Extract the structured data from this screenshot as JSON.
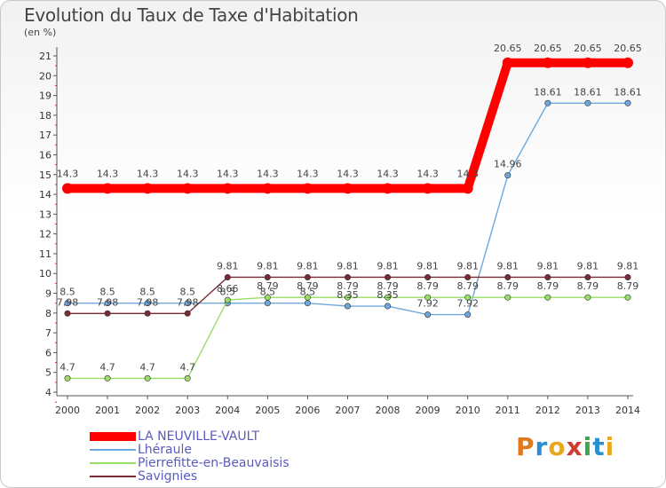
{
  "header": {
    "title": "Evolution du Taux de Taxe d'Habitation",
    "unit": "(en %)"
  },
  "logo": {
    "text": "Proxiti",
    "colors": [
      "#e07a1f",
      "#2a8fd0",
      "#e8a820",
      "#d03a2f",
      "#3aa84a",
      "#2a8fd0",
      "#e8a820"
    ]
  },
  "chart_data": {
    "type": "line",
    "x": [
      2000,
      2001,
      2002,
      2003,
      2004,
      2005,
      2006,
      2007,
      2008,
      2009,
      2010,
      2011,
      2012,
      2013,
      2014
    ],
    "ylim": [
      4,
      21
    ],
    "yticks": [
      4,
      5,
      6,
      7,
      8,
      9,
      10,
      11,
      12,
      13,
      14,
      15,
      16,
      17,
      18,
      19,
      20,
      21
    ],
    "grid": false,
    "legend_position": "bottom-left",
    "series": [
      {
        "name": "LA NEUVILLE-VAULT",
        "color": "#ff0000",
        "width": "thick",
        "values": [
          14.3,
          14.3,
          14.3,
          14.3,
          14.3,
          14.3,
          14.3,
          14.3,
          14.3,
          14.3,
          14.3,
          20.65,
          20.65,
          20.65,
          20.65
        ],
        "labels": [
          "14.3",
          "14.3",
          "14.3",
          "14.3",
          "14.3",
          "14.3",
          "14.3",
          "14.3",
          "14.3",
          "14.3",
          "14.3",
          "20.65",
          "20.65",
          "20.65",
          "20.65"
        ]
      },
      {
        "name": "Lhéraule",
        "color": "#6fa8dc",
        "width": "thin",
        "values": [
          8.5,
          8.5,
          8.5,
          8.5,
          8.5,
          8.5,
          8.5,
          8.35,
          8.35,
          7.92,
          7.92,
          14.96,
          18.61,
          18.61,
          18.61
        ],
        "labels": [
          "8.5",
          "8.5",
          "8.5",
          "8.5",
          "8.5",
          "8.5",
          "8.5",
          "8.35",
          "8.35",
          "7.92",
          "7.92",
          "14.96",
          "18.61",
          "18.61",
          "18.61"
        ]
      },
      {
        "name": "Pierrefitte-en-Beauvaisis",
        "color": "#99dd66",
        "width": "thin",
        "values": [
          4.7,
          4.7,
          4.7,
          4.7,
          8.66,
          8.79,
          8.79,
          8.79,
          8.79,
          8.79,
          8.79,
          8.79,
          8.79,
          8.79,
          8.79
        ],
        "labels": [
          "4.7",
          "4.7",
          "4.7",
          "4.7",
          "8.66",
          "8.79",
          "8.79",
          "8.79",
          "8.79",
          "8.79",
          "8.79",
          "8.79",
          "8.79",
          "8.79",
          "8.79"
        ]
      },
      {
        "name": "Savignies",
        "color": "#7a2a35",
        "width": "thin",
        "values": [
          7.98,
          7.98,
          7.98,
          7.98,
          9.81,
          9.81,
          9.81,
          9.81,
          9.81,
          9.81,
          9.81,
          9.81,
          9.81,
          9.81,
          9.81
        ],
        "labels": [
          "7.98",
          "7.98",
          "7.98",
          "7.98",
          "9.81",
          "9.81",
          "9.81",
          "9.81",
          "9.81",
          "9.81",
          "9.81",
          "9.81",
          "9.81",
          "9.81",
          "9.81"
        ]
      }
    ]
  }
}
